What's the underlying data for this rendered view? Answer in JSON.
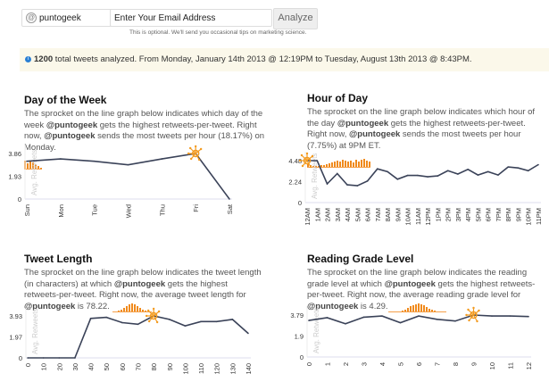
{
  "form": {
    "handle_prefix": "@",
    "handle_value": "puntogeek",
    "email_placeholder": "Enter Your Email Address",
    "analyze_label": "Analyze",
    "hint": "This is optional. We'll send you occasional tips on marketing science."
  },
  "banner": {
    "count": "1200",
    "text": " total tweets analyzed. From Monday, January 14th 2013 @ 12:19PM to Tuesday, August 13th 2013 @ 8:43PM."
  },
  "colors": {
    "line": "#3a4258",
    "sprocket": "#f39a1e",
    "info": "#2a7fd4",
    "banner_bg": "#fbf8ea"
  },
  "panels": [
    {
      "title": "Day of the Week",
      "desc": [
        {
          "t": "The sprocket on the line graph below indicates which day of the week "
        },
        {
          "t": "@puntogeek",
          "b": true
        },
        {
          "t": " gets the highest retweets-per-tweet. Right now, "
        },
        {
          "t": "@puntogeek",
          "b": true
        },
        {
          "t": " sends the most tweets per hour (18.17%) on Monday."
        }
      ],
      "sparkline": [
        9,
        6,
        8,
        7,
        5,
        3,
        1
      ]
    },
    {
      "title": "Hour of Day",
      "desc": [
        {
          "t": "The sprocket on the line graph below indicates which hour of the day "
        },
        {
          "t": "@puntogeek",
          "b": true
        },
        {
          "t": " gets the highest retweets-per-tweet. Right now, "
        },
        {
          "t": "@puntogeek",
          "b": true
        },
        {
          "t": " sends the most tweets per hour (7.75%) at 9PM ET."
        }
      ],
      "sparkline": [
        3,
        2,
        1,
        1,
        1,
        2,
        2,
        3,
        4,
        5,
        6,
        7,
        6,
        8,
        7,
        6,
        7,
        5,
        8,
        6,
        8,
        9,
        7,
        6
      ]
    },
    {
      "title": "Tweet Length",
      "desc": [
        {
          "t": "The sprocket on the line graph below indicates the tweet length (in characters) at which "
        },
        {
          "t": "@puntogeek",
          "b": true
        },
        {
          "t": " gets the highest retweets-per-tweet. Right now, the average tweet length for "
        },
        {
          "t": "@puntogeek",
          "b": true
        },
        {
          "t": " is 78.22. "
        }
      ],
      "sparkline": [
        0,
        0,
        1,
        2,
        4,
        6,
        8,
        9,
        8,
        6,
        4,
        2,
        1,
        0,
        0
      ]
    },
    {
      "title": "Reading Grade Level",
      "desc": [
        {
          "t": "The sprocket on the line graph below indicates the reading grade level at which "
        },
        {
          "t": "@puntogeek",
          "b": true
        },
        {
          "t": " gets the highest retweets-per-tweet. Right now, the average reading grade level for "
        },
        {
          "t": "@puntogeek",
          "b": true
        },
        {
          "t": " is 4.29."
        }
      ],
      "sparkline": [
        0,
        0,
        0,
        0,
        0,
        1,
        2,
        4,
        6,
        7,
        8,
        9,
        8,
        7,
        5,
        3,
        2,
        1,
        0,
        0,
        0,
        0
      ]
    }
  ],
  "chart_data": [
    {
      "type": "line",
      "ylabel": "Avg. Retweets",
      "ylim": [
        0,
        3.86
      ],
      "yticks": [
        "0",
        "1.93",
        "3.86"
      ],
      "categories": [
        "Sun",
        "Mon",
        "Tue",
        "Wed",
        "Thu",
        "Fri",
        "Sat"
      ],
      "values": [
        3.2,
        3.4,
        3.2,
        2.9,
        3.4,
        3.86,
        0
      ],
      "sprocket_index": 5
    },
    {
      "type": "line",
      "ylabel": "Avg. Retweets",
      "ylim": [
        0,
        4.48
      ],
      "yticks": [
        "0",
        "2.24",
        "4.48"
      ],
      "categories": [
        "12AM",
        "1AM",
        "2AM",
        "3AM",
        "4AM",
        "5AM",
        "6AM",
        "7AM",
        "8AM",
        "9AM",
        "10AM",
        "11AM",
        "12PM",
        "1PM",
        "2PM",
        "3PM",
        "4PM",
        "5PM",
        "6PM",
        "7PM",
        "8PM",
        "9PM",
        "10PM",
        "11PM"
      ],
      "values": [
        4.48,
        4.48,
        2.0,
        3.1,
        1.9,
        1.8,
        2.3,
        3.6,
        3.3,
        2.5,
        2.9,
        2.9,
        2.75,
        2.85,
        3.4,
        3.05,
        3.55,
        2.95,
        3.3,
        2.95,
        3.8,
        3.7,
        3.4,
        4.05
      ],
      "sprocket_index": 0
    },
    {
      "type": "line",
      "ylabel": "Avg. Retweets",
      "ylim": [
        0,
        3.93
      ],
      "yticks": [
        "0",
        "1.97",
        "3.93"
      ],
      "categories": [
        "0",
        "10",
        "20",
        "30",
        "40",
        "50",
        "60",
        "70",
        "80",
        "90",
        "100",
        "110",
        "120",
        "130",
        "140"
      ],
      "values": [
        0,
        0,
        0,
        0,
        3.7,
        3.8,
        3.3,
        3.15,
        3.93,
        3.6,
        3.0,
        3.4,
        3.4,
        3.6,
        2.3
      ],
      "sprocket_index": 8
    },
    {
      "type": "line",
      "ylabel": "Avg. Retweets",
      "ylim": [
        0,
        3.79
      ],
      "yticks": [
        "0",
        "1.9",
        "3.79"
      ],
      "categories": [
        "0",
        "1",
        "2",
        "3",
        "4",
        "5",
        "6",
        "7",
        "8",
        "9",
        "10",
        "11",
        "12"
      ],
      "values": [
        3.3,
        3.55,
        3.0,
        3.6,
        3.7,
        3.1,
        3.7,
        3.4,
        3.25,
        3.79,
        3.7,
        3.7,
        3.65
      ],
      "sprocket_index": 9
    }
  ]
}
